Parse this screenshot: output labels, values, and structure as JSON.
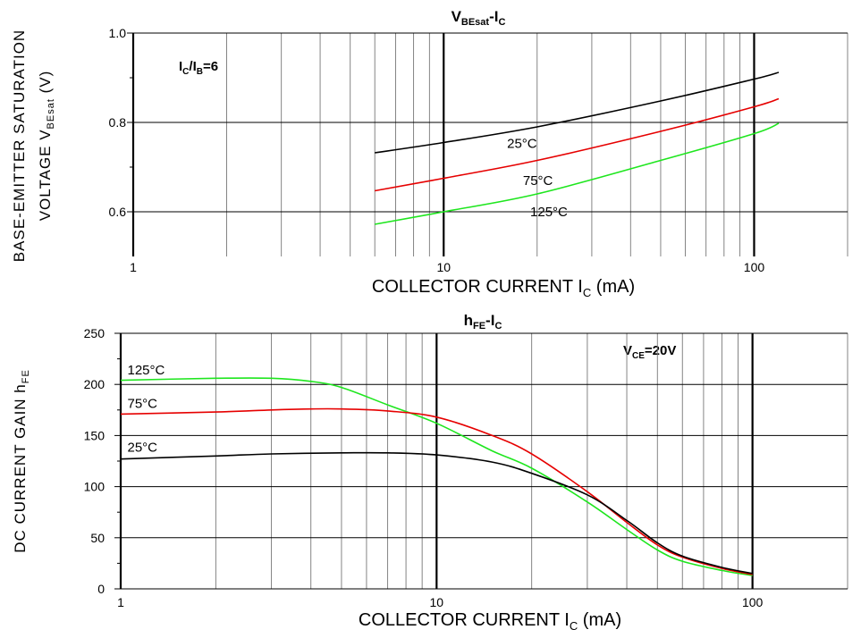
{
  "chart_data": [
    {
      "type": "line",
      "title": {
        "main": "V",
        "sub": "BEsat",
        "mid": "-I",
        "sub2": "C"
      },
      "xlabel": {
        "main": "COLLECTOR CURRENT I",
        "sub": "C",
        "tail": " (mA)"
      },
      "ylabel": {
        "line1": "BASE-EMITTER SATURATION",
        "line2_main": "VOLTAGE V",
        "line2_sub": "BEsat",
        "line2_tail": " (V)"
      },
      "annotation": {
        "main1": "I",
        "sub1": "C",
        "mid": "/I",
        "sub2": "B",
        "tail": "=6"
      },
      "x_scale": "log",
      "xlim": [
        1,
        200
      ],
      "ylim": [
        0.5,
        1.0
      ],
      "x_ticks": [
        {
          "value": 1,
          "label": "1"
        },
        {
          "value": 10,
          "label": "10"
        },
        {
          "value": 100,
          "label": "100"
        }
      ],
      "y_ticks": [
        {
          "value": 0.6,
          "label": "0.6"
        },
        {
          "value": 0.8,
          "label": "0.8"
        },
        {
          "value": 1.0,
          "label": "1.0"
        }
      ],
      "series": [
        {
          "name": "25°C",
          "color": "#000000",
          "x": [
            6,
            10,
            20,
            50,
            100,
            120
          ],
          "y": [
            0.732,
            0.755,
            0.79,
            0.848,
            0.897,
            0.912
          ],
          "label_at": [
            16,
            0.743
          ]
        },
        {
          "name": "75°C",
          "color": "#e60000",
          "x": [
            6,
            10,
            20,
            50,
            100,
            120
          ],
          "y": [
            0.647,
            0.675,
            0.715,
            0.78,
            0.835,
            0.853
          ],
          "label_at": [
            18,
            0.66
          ]
        },
        {
          "name": "125°C",
          "color": "#1ee61e",
          "x": [
            6,
            10,
            20,
            50,
            100,
            120
          ],
          "y": [
            0.572,
            0.6,
            0.64,
            0.715,
            0.775,
            0.798
          ],
          "label_at": [
            19,
            0.59
          ]
        }
      ]
    },
    {
      "type": "line",
      "title": {
        "main": "h",
        "sub": "FE",
        "mid": "-I",
        "sub2": "C"
      },
      "xlabel": {
        "main": "COLLECTOR CURRENT I",
        "sub": "C",
        "tail": " (mA)"
      },
      "ylabel": {
        "main": "DC CURRENT GAIN h",
        "sub": "FE"
      },
      "annotation": {
        "main1": "V",
        "sub1": "CE",
        "tail": "=20V"
      },
      "x_scale": "log",
      "xlim": [
        1,
        200
      ],
      "ylim": [
        0,
        250
      ],
      "x_ticks": [
        {
          "value": 1,
          "label": "1"
        },
        {
          "value": 10,
          "label": "10"
        },
        {
          "value": 100,
          "label": "100"
        }
      ],
      "y_ticks": [
        {
          "value": 0,
          "label": "0"
        },
        {
          "value": 50,
          "label": "50"
        },
        {
          "value": 100,
          "label": "100"
        },
        {
          "value": 150,
          "label": "150"
        },
        {
          "value": 200,
          "label": "200"
        },
        {
          "value": 250,
          "label": "250"
        }
      ],
      "series": [
        {
          "name": "125°C",
          "color": "#1ee61e",
          "x": [
            1,
            2,
            3,
            4,
            5,
            7,
            10,
            15,
            20,
            30,
            40,
            50,
            60,
            80,
            100
          ],
          "y": [
            204,
            206,
            206,
            203,
            197,
            180,
            162,
            135,
            118,
            85,
            58,
            38,
            27,
            18,
            13
          ],
          "label_at": [
            1.05,
            210
          ]
        },
        {
          "name": "75°C",
          "color": "#e60000",
          "x": [
            1,
            2,
            3,
            4,
            5,
            7,
            10,
            15,
            20,
            30,
            40,
            50,
            60,
            80,
            100
          ],
          "y": [
            171,
            173,
            175,
            176,
            176,
            174,
            168,
            150,
            132,
            95,
            65,
            43,
            31,
            20,
            14
          ],
          "label_at": [
            1.05,
            177
          ]
        },
        {
          "name": "25°C",
          "color": "#000000",
          "x": [
            1,
            2,
            3,
            5,
            7,
            10,
            15,
            20,
            30,
            40,
            50,
            60,
            80,
            100
          ],
          "y": [
            127,
            130,
            132,
            133,
            133,
            131,
            124,
            113,
            92,
            67,
            45,
            32,
            21,
            15
          ],
          "label_at": [
            1.05,
            134
          ]
        }
      ]
    }
  ]
}
